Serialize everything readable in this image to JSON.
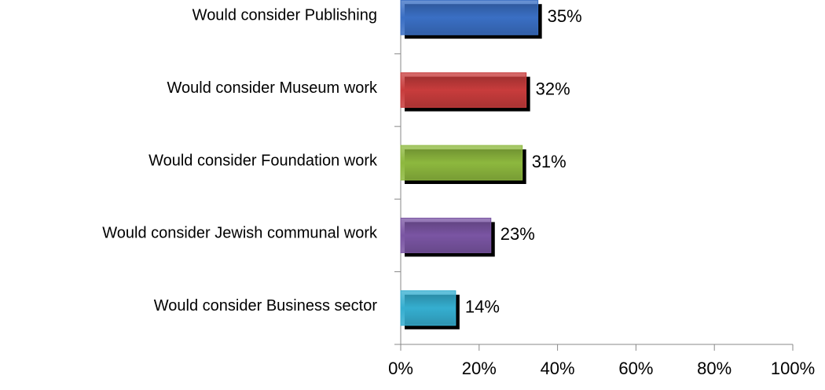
{
  "chart_data": {
    "type": "bar",
    "orientation": "horizontal",
    "categories": [
      "Would consider Publishing",
      "Would consider Museum work",
      "Would consider Foundation work",
      "Would consider Jewish communal work",
      "Would consider Business sector"
    ],
    "values": [
      35,
      32,
      31,
      23,
      14
    ],
    "value_labels": [
      "35%",
      "32%",
      "31%",
      "23%",
      "14%"
    ],
    "colors": [
      "#3a6fc4",
      "#c83c3c",
      "#8db83e",
      "#7a55a3",
      "#35aed0"
    ],
    "xlim": [
      0,
      100
    ],
    "xticks": [
      {
        "value": 0,
        "label": "0%"
      },
      {
        "value": 20,
        "label": "20%"
      },
      {
        "value": 40,
        "label": "40%"
      },
      {
        "value": 60,
        "label": "60%"
      },
      {
        "value": 80,
        "label": "80%"
      },
      {
        "value": 100,
        "label": "100%"
      }
    ]
  }
}
